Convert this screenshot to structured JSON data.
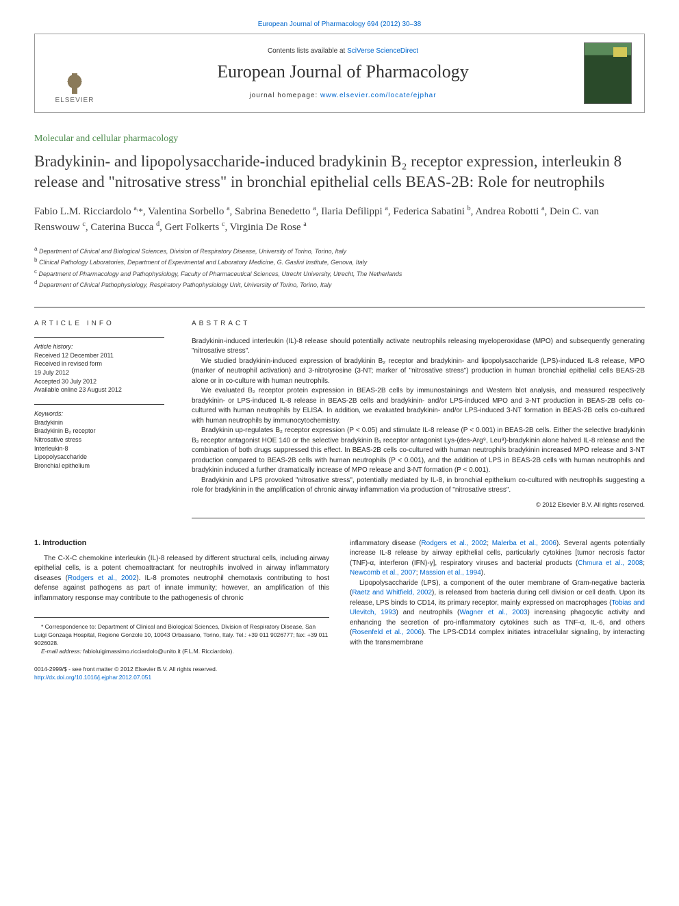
{
  "header": {
    "citation_prefix": "European Journal of Pharmacology 694 (2012) 30–38",
    "contents_line_prefix": "Contents lists available at ",
    "contents_link_text": "SciVerse ScienceDirect",
    "journal_title": "European Journal of Pharmacology",
    "homepage_prefix": "journal homepage: ",
    "homepage_link": "www.elsevier.com/locate/ejphar",
    "elsevier_label": "ELSEVIER"
  },
  "section_label": "Molecular and cellular pharmacology",
  "title": "Bradykinin- and lipopolysaccharide-induced bradykinin B₂ receptor expression, interleukin 8 release and \"nitrosative stress\" in bronchial epithelial cells BEAS-2B: Role for neutrophils",
  "authors_html": "Fabio L.M. Ricciardolo <span class='sup'>a,</span><span class='asterisk'>*</span>, Valentina Sorbello <span class='sup'>a</span>, Sabrina Benedetto <span class='sup'>a</span>, Ilaria Defilippi <span class='sup'>a</span>, Federica Sabatini <span class='sup'>b</span>, Andrea Robotti <span class='sup'>a</span>, Dein C. van Renswouw <span class='sup'>c</span>, Caterina Bucca <span class='sup'>d</span>, Gert Folkerts <span class='sup'>c</span>, Virginia De Rose <span class='sup'>a</span>",
  "affiliations": [
    {
      "marker": "a",
      "text": "Department of Clinical and Biological Sciences, Division of Respiratory Disease, University of Torino, Torino, Italy"
    },
    {
      "marker": "b",
      "text": "Clinical Pathology Laboratories, Department of Experimental and Laboratory Medicine, G. Gaslini Institute, Genova, Italy"
    },
    {
      "marker": "c",
      "text": "Department of Pharmacology and Pathophysiology, Faculty of Pharmaceutical Sciences, Utrecht University, Utrecht, The Netherlands"
    },
    {
      "marker": "d",
      "text": "Department of Clinical Pathophysiology, Respiratory Pathophysiology Unit, University of Torino, Torino, Italy"
    }
  ],
  "article_info": {
    "heading": "ARTICLE INFO",
    "history_label": "Article history:",
    "history": [
      "Received 12 December 2011",
      "Received in revised form",
      "19 July 2012",
      "Accepted 30 July 2012",
      "Available online 23 August 2012"
    ],
    "keywords_label": "Keywords:",
    "keywords": [
      "Bradykinin",
      "Bradykinin B₂ receptor",
      "Nitrosative stress",
      "Interleukin-8",
      "Lipopolysaccharide",
      "Bronchial epithelium"
    ]
  },
  "abstract": {
    "heading": "ABSTRACT",
    "paragraphs": [
      "Bradykinin-induced interleukin (IL)-8 release should potentially activate neutrophils releasing myeloperoxidase (MPO) and subsequently generating \"nitrosative stress\".",
      "We studied bradykinin-induced expression of bradykinin B₂ receptor and bradykinin- and lipopolysaccharide (LPS)-induced IL-8 release, MPO (marker of neutrophil activation) and 3-nitrotyrosine (3-NT; marker of \"nitrosative stress\") production in human bronchial epithelial cells BEAS-2B alone or in co-culture with human neutrophils.",
      "We evaluated B₂ receptor protein expression in BEAS-2B cells by immunostainings and Western blot analysis, and measured respectively bradykinin- or LPS-induced IL-8 release in BEAS-2B cells and bradykinin- and/or LPS-induced MPO and 3-NT production in BEAS-2B cells co-cultured with human neutrophils by ELISA. In addition, we evaluated bradykinin- and/or LPS-induced 3-NT formation in BEAS-2B cells co-cultured with human neutrophils by immunocytochemistry.",
      "Bradykinin up-regulates B₂ receptor expression (P < 0.05) and stimulate IL-8 release (P < 0.001) in BEAS-2B cells. Either the selective bradykinin B₂ receptor antagonist HOE 140 or the selective bradykinin B₁ receptor antagonist Lys-(des-Arg⁹, Leu⁸)-bradykinin alone halved IL-8 release and the combination of both drugs suppressed this effect. In BEAS-2B cells co-cultured with human neutrophils bradykinin increased MPO release and 3-NT production compared to BEAS-2B cells with human neutrophils (P < 0.001), and the addition of LPS in BEAS-2B cells with human neutrophils and bradykinin induced a further dramatically increase of MPO release and 3-NT formation (P < 0.001).",
      "Bradykinin and LPS provoked \"nitrosative stress\", potentially mediated by IL-8, in bronchial epithelium co-cultured with neutrophils suggesting a role for bradykinin in the amplification of chronic airway inflammation via production of \"nitrosative stress\"."
    ],
    "copyright": "© 2012 Elsevier B.V. All rights reserved."
  },
  "body": {
    "intro_heading": "1. Introduction",
    "left_para_html": "The C-X-C chemokine interleukin (IL)-8 released by different structural cells, including airway epithelial cells, is a potent chemoattractant for neutrophils involved in airway inflammatory diseases (<a href='#'>Rodgers et al., 2002</a>). IL-8 promotes neutrophil chemotaxis contributing to host defense against pathogens as part of innate immunity; however, an amplification of this inflammatory response may contribute to the pathogenesis of chronic",
    "right_para1_html": "inflammatory disease (<a href='#'>Rodgers et al., 2002</a>; <a href='#'>Malerba et al., 2006</a>). Several agents potentially increase IL-8 release by airway epithelial cells, particularly cytokines [tumor necrosis factor (TNF)-α, interferon (IFN)-γ], respiratory viruses and bacterial products (<a href='#'>Chmura et al., 2008</a>; <a href='#'>Newcomb et al., 2007</a>; <a href='#'>Massion et al., 1994</a>).",
    "right_para2_html": "Lipopolysaccharide (LPS), a component of the outer membrane of Gram-negative bacteria (<a href='#'>Raetz and Whitfield, 2002</a>), is released from bacteria during cell division or cell death. Upon its release, LPS binds to CD14, its primary receptor, mainly expressed on macrophages (<a href='#'>Tobias and Ulevitch, 1993</a>) and neutrophils (<a href='#'>Wagner et al., 2003</a>) increasing phagocytic activity and enhancing the secretion of pro-inflammatory cytokines such as TNF-α, IL-6, and others (<a href='#'>Rosenfeld et al., 2006</a>). The LPS-CD14 complex initiates intracellular signaling, by interacting with the transmembrane"
  },
  "footnotes": {
    "correspondence": "* Correspondence to: Department of Clinical and Biological Sciences, Division of Respiratory Disease, San Luigi Gonzaga Hospital, Regione Gonzole 10, 10043 Orbassano, Torino, Italy. Tel.: +39 011 9026777; fax: +39 011 9026028.",
    "email_label": "E-mail address:",
    "email": "fabioluigimassimo.ricciardolo@unito.it (F.L.M. Ricciardolo)."
  },
  "footer": {
    "line1": "0014-2999/$ - see front matter © 2012 Elsevier B.V. All rights reserved.",
    "doi": "http://dx.doi.org/10.1016/j.ejphar.2012.07.051"
  },
  "colors": {
    "link": "#0066cc",
    "section_green": "#4a8a4a",
    "text": "#2a2a2a",
    "border": "#333333"
  }
}
